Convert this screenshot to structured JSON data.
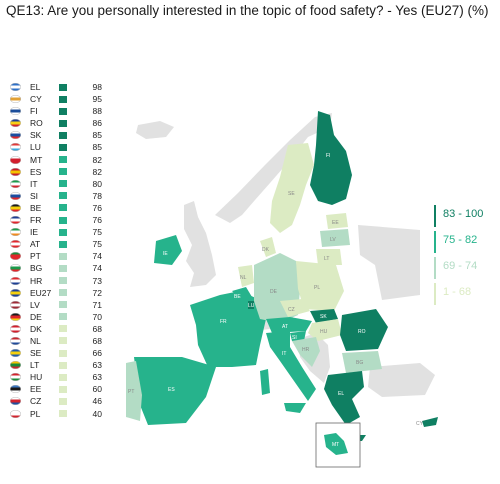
{
  "title": "QE13: Are you personally interested in the topic of food safety? - Yes (EU27) (%)",
  "colors": {
    "dark": "#0f7f62",
    "mid": "#26b38c",
    "light": "#b3dcc5",
    "pale": "#dcebc3",
    "grey": "#e1e1e1"
  },
  "ranking": [
    {
      "code": "EL",
      "value": 98,
      "class": "dark",
      "flag": [
        "#2d6fc7",
        "#ffffff",
        "#2d6fc7"
      ]
    },
    {
      "code": "CY",
      "value": 95,
      "class": "dark",
      "flag": [
        "#ffffff",
        "#e3a133",
        "#ffffff"
      ]
    },
    {
      "code": "FI",
      "value": 88,
      "class": "dark",
      "flag": [
        "#ffffff",
        "#1b4d9a",
        "#ffffff"
      ]
    },
    {
      "code": "RO",
      "value": 86,
      "class": "dark",
      "flag": [
        "#1c3f94",
        "#f7d117",
        "#d2232a"
      ]
    },
    {
      "code": "SK",
      "value": 85,
      "class": "dark",
      "flag": [
        "#ffffff",
        "#1c4fa0",
        "#e0262b"
      ]
    },
    {
      "code": "LU",
      "value": 85,
      "class": "dark",
      "flag": [
        "#e03a3a",
        "#ffffff",
        "#3aa7de"
      ]
    },
    {
      "code": "MT",
      "value": 82,
      "class": "mid",
      "flag": [
        "#ffffff",
        "#d21f2d",
        "#d21f2d"
      ]
    },
    {
      "code": "ES",
      "value": 82,
      "class": "mid",
      "flag": [
        "#c61d2a",
        "#f4c300",
        "#c61d2a"
      ]
    },
    {
      "code": "IT",
      "value": 80,
      "class": "mid",
      "flag": [
        "#1b9a4a",
        "#ffffff",
        "#d3232d"
      ]
    },
    {
      "code": "SI",
      "value": 78,
      "class": "mid",
      "flag": [
        "#ffffff",
        "#1b4ea0",
        "#e0262b"
      ]
    },
    {
      "code": "BE",
      "value": 76,
      "class": "mid",
      "flag": [
        "#1a1a1a",
        "#f5d10e",
        "#e0262b"
      ]
    },
    {
      "code": "FR",
      "value": 76,
      "class": "mid",
      "flag": [
        "#1f3d93",
        "#ffffff",
        "#e0262b"
      ]
    },
    {
      "code": "IE",
      "value": 75,
      "class": "mid",
      "flag": [
        "#1b9a4a",
        "#ffffff",
        "#f18b1e"
      ]
    },
    {
      "code": "AT",
      "value": 75,
      "class": "mid",
      "flag": [
        "#e0262b",
        "#ffffff",
        "#e0262b"
      ]
    },
    {
      "code": "PT",
      "value": 74,
      "class": "light",
      "flag": [
        "#1b8a3a",
        "#e0262b",
        "#e0262b"
      ]
    },
    {
      "code": "BG",
      "value": 74,
      "class": "light",
      "flag": [
        "#ffffff",
        "#1b9a4a",
        "#e0262b"
      ]
    },
    {
      "code": "HR",
      "value": 73,
      "class": "light",
      "flag": [
        "#e0262b",
        "#ffffff",
        "#1c3f94"
      ]
    },
    {
      "code": "EU27",
      "value": 72,
      "class": "light",
      "flag": [
        "#1c3f94",
        "#f5d10e",
        "#1c3f94"
      ]
    },
    {
      "code": "LV",
      "value": 71,
      "class": "light",
      "flag": [
        "#9e2a36",
        "#ffffff",
        "#9e2a36"
      ]
    },
    {
      "code": "DE",
      "value": 70,
      "class": "light",
      "flag": [
        "#1a1a1a",
        "#e0262b",
        "#f5d10e"
      ]
    },
    {
      "code": "DK",
      "value": 68,
      "class": "pale",
      "flag": [
        "#d21f2d",
        "#ffffff",
        "#d21f2d"
      ]
    },
    {
      "code": "NL",
      "value": 68,
      "class": "pale",
      "flag": [
        "#c6262e",
        "#ffffff",
        "#1f4a9a"
      ]
    },
    {
      "code": "SE",
      "value": 66,
      "class": "pale",
      "flag": [
        "#1f5ba8",
        "#f5d10e",
        "#1f5ba8"
      ]
    },
    {
      "code": "LT",
      "value": 63,
      "class": "pale",
      "flag": [
        "#f5c300",
        "#1b8a3a",
        "#c6262e"
      ]
    },
    {
      "code": "HU",
      "value": 63,
      "class": "pale",
      "flag": [
        "#d2232d",
        "#ffffff",
        "#1b8a3a"
      ]
    },
    {
      "code": "EE",
      "value": 60,
      "class": "pale",
      "flag": [
        "#3b78c4",
        "#1a1a1a",
        "#ffffff"
      ]
    },
    {
      "code": "CZ",
      "value": 46,
      "class": "pale",
      "flag": [
        "#ffffff",
        "#d2232d",
        "#1c4fa0"
      ]
    },
    {
      "code": "PL",
      "value": 40,
      "class": "pale",
      "flag": [
        "#ffffff",
        "#ffffff",
        "#d2232d"
      ]
    }
  ],
  "legend": [
    {
      "label": "83 - 100",
      "class": "dark"
    },
    {
      "label": "75 - 82",
      "class": "mid"
    },
    {
      "label": "69 - 74",
      "class": "light"
    },
    {
      "label": "1 - 68",
      "class": "pale"
    }
  ],
  "map_labels": {
    "fi": "FI",
    "se": "SE",
    "ie": "IE",
    "uk": "",
    "fr": "FR",
    "es": "ES",
    "pt": "PT",
    "be": "BE",
    "nl": "NL",
    "lu": "LU",
    "de": "DE",
    "dk": "DK",
    "ee": "EE",
    "lv": "LV",
    "lt": "LT",
    "pl": "PL",
    "cz": "CZ",
    "sk": "SK",
    "at": "AT",
    "hu": "HU",
    "si": "SI",
    "hr": "HR",
    "it": "IT",
    "ro": "RO",
    "bg": "BG",
    "el": "EL",
    "mt": "MT",
    "cy": "CY"
  }
}
